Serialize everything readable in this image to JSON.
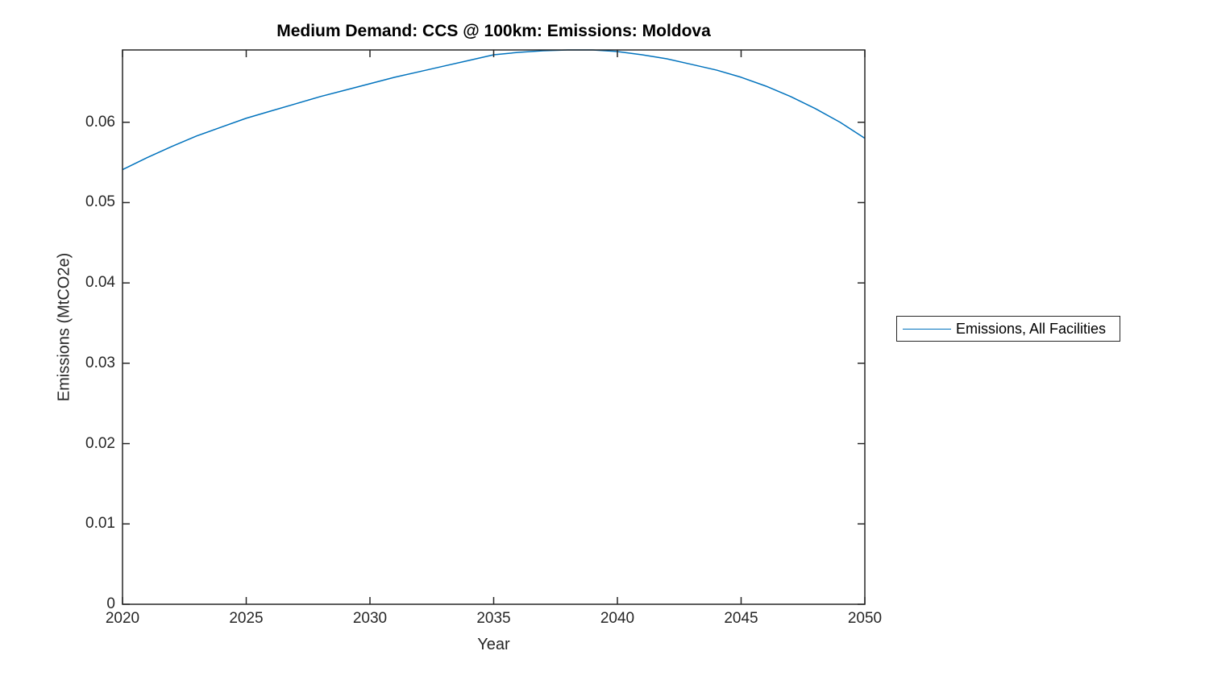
{
  "figure": {
    "background": "#ffffff",
    "kind": "matlab-style line plot"
  },
  "chart_data": {
    "type": "line",
    "title": "Medium Demand: CCS @ 100km: Emissions: Moldova",
    "xlabel": "Year",
    "ylabel": "Emissions (MtCO2e)",
    "xlim": [
      2020,
      2050
    ],
    "ylim": [
      0,
      0.069
    ],
    "xticks": [
      2020,
      2025,
      2030,
      2035,
      2040,
      2045,
      2050
    ],
    "xtick_labels": [
      "2020",
      "2025",
      "2030",
      "2035",
      "2040",
      "2045",
      "2050"
    ],
    "yticks": [
      0,
      0.01,
      0.02,
      0.03,
      0.04,
      0.05,
      0.06
    ],
    "ytick_labels": [
      "0",
      "0.01",
      "0.02",
      "0.03",
      "0.04",
      "0.05",
      "0.06"
    ],
    "grid": false,
    "box": true,
    "axis_color": "#262626",
    "legend": {
      "position": "right-outside",
      "border_color": "#262626",
      "entries": [
        "Emissions, All Facilities"
      ]
    },
    "series": [
      {
        "name": "Emissions, All Facilities",
        "color": "#0072BD",
        "x": [
          2020,
          2021,
          2022,
          2023,
          2024,
          2025,
          2026,
          2027,
          2028,
          2029,
          2030,
          2031,
          2032,
          2033,
          2034,
          2035,
          2036,
          2037,
          2038,
          2039,
          2040,
          2041,
          2042,
          2043,
          2044,
          2045,
          2046,
          2047,
          2048,
          2049,
          2050
        ],
        "y": [
          0.0541,
          0.0556,
          0.057,
          0.0583,
          0.0594,
          0.0605,
          0.0614,
          0.0623,
          0.0632,
          0.064,
          0.0648,
          0.0656,
          0.0663,
          0.067,
          0.0677,
          0.0684,
          0.0687,
          0.0689,
          0.069,
          0.069,
          0.0688,
          0.0684,
          0.0679,
          0.0672,
          0.0665,
          0.0656,
          0.0645,
          0.0632,
          0.0617,
          0.06,
          0.058
        ]
      }
    ]
  }
}
